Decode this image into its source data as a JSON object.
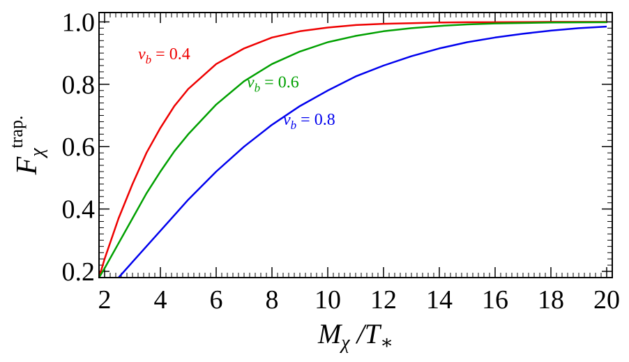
{
  "chart_data": {
    "type": "line",
    "title": "",
    "xlabel": "M_χ / T_*",
    "ylabel": "F_χ^trap.",
    "xlim": [
      1.8,
      20.2
    ],
    "ylim": [
      0.18,
      1.03
    ],
    "xticks": [
      2,
      4,
      6,
      8,
      10,
      12,
      14,
      16,
      18,
      20
    ],
    "yticks": [
      0.2,
      0.4,
      0.6,
      0.8,
      1.0
    ],
    "x_tick_labels": [
      "2",
      "4",
      "6",
      "8",
      "10",
      "12",
      "14",
      "16",
      "18",
      "20"
    ],
    "y_tick_labels": [
      "0.2",
      "0.4",
      "0.6",
      "0.8",
      "1.0"
    ],
    "grid": false,
    "series": [
      {
        "name": "v_b = 0.4",
        "label_main": "v",
        "label_sub": "b",
        "label_value": " = 0.4",
        "color": "#ee0000",
        "x": [
          1.8,
          2,
          2.5,
          3,
          3.5,
          4,
          4.5,
          5,
          6,
          7,
          8,
          9,
          10,
          11,
          12,
          13,
          14,
          15,
          16,
          18,
          20
        ],
        "y": [
          0.18,
          0.24,
          0.37,
          0.48,
          0.58,
          0.66,
          0.73,
          0.785,
          0.865,
          0.915,
          0.95,
          0.97,
          0.982,
          0.99,
          0.994,
          0.996,
          0.998,
          0.999,
          0.999,
          1.0,
          1.0
        ]
      },
      {
        "name": "v_b = 0.6",
        "label_main": "v",
        "label_sub": "b",
        "label_value": " = 0.6",
        "color": "#00a000",
        "x": [
          1.8,
          2,
          2.5,
          3,
          3.5,
          4,
          4.5,
          5,
          6,
          7,
          8,
          9,
          10,
          11,
          12,
          13,
          14,
          15,
          16,
          18,
          20
        ],
        "y": [
          0.18,
          0.21,
          0.29,
          0.37,
          0.45,
          0.52,
          0.585,
          0.64,
          0.735,
          0.81,
          0.865,
          0.905,
          0.935,
          0.955,
          0.97,
          0.98,
          0.987,
          0.992,
          0.995,
          0.998,
          0.999
        ]
      },
      {
        "name": "v_b = 0.8",
        "label_main": "v",
        "label_sub": "b",
        "label_value": " = 0.8",
        "color": "#0000ee",
        "x": [
          2.5,
          3,
          4,
          5,
          6,
          7,
          8,
          9,
          10,
          11,
          12,
          13,
          14,
          15,
          16,
          17,
          18,
          19,
          20
        ],
        "y": [
          0.18,
          0.23,
          0.33,
          0.43,
          0.52,
          0.6,
          0.67,
          0.73,
          0.78,
          0.825,
          0.86,
          0.89,
          0.915,
          0.935,
          0.95,
          0.962,
          0.972,
          0.98,
          0.985
        ]
      }
    ]
  }
}
